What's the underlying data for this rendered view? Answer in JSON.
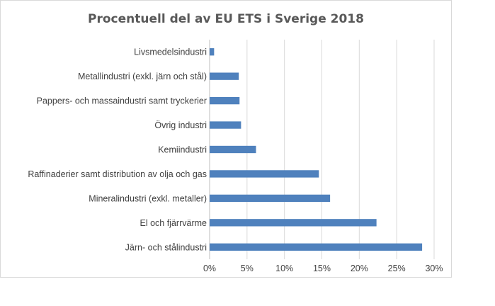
{
  "chart_data": {
    "type": "bar",
    "orientation": "horizontal",
    "title": "Procentuell del av EU ETS i Sverige 2018",
    "xlabel": "",
    "ylabel": "",
    "categories": [
      "Livsmedelsindustri",
      "Metallindustri (exkl. järn och stål)",
      "Pappers- och massaindustri samt tryckerier",
      "Övrig industri",
      "Kemiindustri",
      "Raffinaderier samt distribution av olja och gas",
      "Mineralindustri (exkl. metaller)",
      "El och fjärrvärme",
      "Järn- och stålindustri"
    ],
    "values": [
      0.6,
      3.9,
      4.0,
      4.2,
      6.2,
      14.6,
      16.1,
      22.3,
      28.4
    ],
    "unit": "%",
    "xlim": [
      0,
      30
    ],
    "xticks": [
      0,
      5,
      10,
      15,
      20,
      25,
      30
    ],
    "xtick_labels": [
      "0%",
      "5%",
      "10%",
      "15%",
      "20%",
      "25%",
      "30%"
    ],
    "grid": "vertical",
    "legend": "none",
    "bar_color": "#4f81bd",
    "grid_color": "#d9d9d9"
  }
}
